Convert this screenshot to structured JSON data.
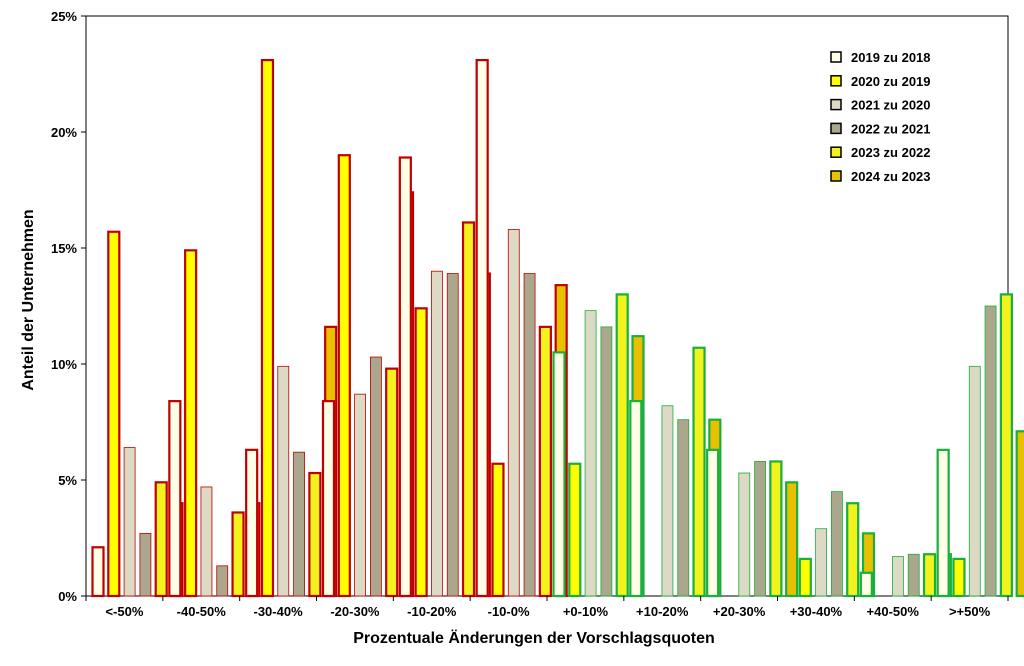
{
  "chart_data": {
    "type": "bar",
    "xlabel": "Prozentuale Änderungen der Vorschlagsquoten",
    "ylabel": "Anteil der Unternehmen",
    "ylim": [
      0,
      25
    ],
    "yticks": [
      "0%",
      "5%",
      "10%",
      "15%",
      "20%",
      "25%"
    ],
    "grid": false,
    "legend_position": "top-right",
    "categories": [
      "<-50%",
      "-40-50%",
      "-30-40%",
      "-20-30%",
      "-10-20%",
      "-10-0%",
      "+0-10%",
      "+10-20%",
      "+20-30%",
      "+30-40%",
      "+40-50%",
      ">+50%"
    ],
    "series": [
      {
        "name": "2019 zu 2018",
        "fill": "#FFFFE8",
        "values": [
          2.1,
          8.4,
          6.3,
          8.4,
          18.9,
          23.1,
          10.5,
          8.4,
          6.3,
          0,
          1.0,
          6.3
        ]
      },
      {
        "name": "2020 zu 2019",
        "fill": "#FFFF00",
        "values": [
          15.7,
          14.9,
          23.1,
          19.0,
          12.4,
          5.7,
          5.7,
          0,
          0,
          1.6,
          0,
          1.6
        ]
      },
      {
        "name": "2021 zu 2020",
        "fill": "#DCD9C4",
        "values": [
          6.4,
          4.7,
          9.9,
          8.7,
          14.0,
          15.8,
          12.3,
          8.2,
          5.3,
          2.9,
          1.7,
          9.9
        ]
      },
      {
        "name": "2022 zu 2021",
        "fill": "#ABA78C",
        "values": [
          2.7,
          1.3,
          6.2,
          10.3,
          13.9,
          13.9,
          11.6,
          7.6,
          5.8,
          4.5,
          1.8,
          12.5
        ]
      },
      {
        "name": "2023 zu 2022",
        "fill": "#F2F21E",
        "values": [
          4.9,
          3.6,
          5.3,
          9.8,
          16.1,
          11.6,
          13.0,
          10.7,
          5.8,
          4.0,
          1.8,
          13.0
        ]
      },
      {
        "name": "2024 zu 2023",
        "fill": "#E8C000",
        "values": [
          4.0,
          4.0,
          11.6,
          17.4,
          13.9,
          13.4,
          11.2,
          7.6,
          4.9,
          2.7,
          1.8,
          7.1
        ]
      }
    ],
    "border_colors": {
      "negative": "#C00000",
      "positive": "#17B03A"
    }
  }
}
